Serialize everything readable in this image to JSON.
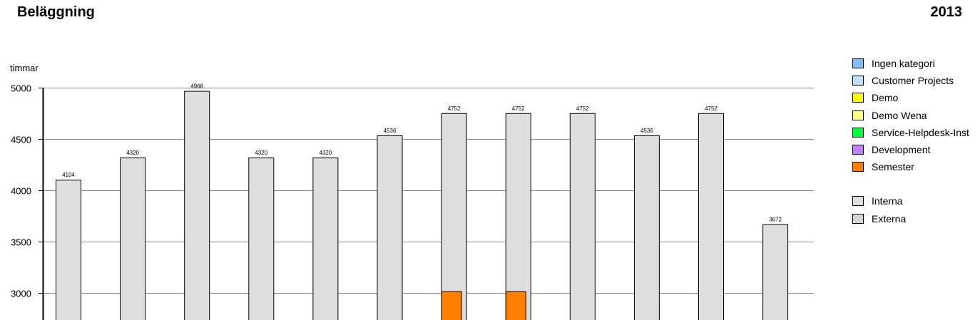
{
  "header": {
    "title": "Beläggning",
    "year": "2013"
  },
  "chart_data": {
    "type": "bar",
    "ylabel": "timmar",
    "ylim": [
      2740,
      5000
    ],
    "yticks": [
      3000,
      3500,
      4000,
      4500,
      5000
    ],
    "grid": true,
    "categories": [
      "",
      "",
      "",
      "",
      "",
      "",
      "",
      "",
      "",
      "",
      "",
      ""
    ],
    "series": [
      {
        "name": "Interna",
        "color": "#dedede",
        "values": [
          4104,
          4320,
          4968,
          4320,
          4320,
          4536,
          4752,
          4752,
          4752,
          4536,
          4752,
          3672
        ]
      },
      {
        "name": "Semester",
        "color": "#ff8000",
        "values": [
          null,
          null,
          null,
          null,
          null,
          null,
          3020,
          3020,
          null,
          null,
          null,
          null
        ]
      }
    ],
    "data_labels": [
      "4104",
      "4320",
      "4968",
      "4320",
      "4320",
      "4536",
      "4752",
      "4752",
      "4752",
      "4536",
      "4752",
      "3672"
    ]
  },
  "legend": {
    "categories": [
      {
        "label": "Ingen kategori",
        "color": "#7fbfff"
      },
      {
        "label": "Customer Projects",
        "color": "#bfdfff"
      },
      {
        "label": "Demo",
        "color": "#ffff00"
      },
      {
        "label": "Demo Wena",
        "color": "#ffff80"
      },
      {
        "label": "Service-Helpdesk-Inst",
        "color": "#00ff40"
      },
      {
        "label": "Development",
        "color": "#c080ff"
      },
      {
        "label": "Semester",
        "color": "#ff8000"
      }
    ],
    "types": [
      {
        "label": "Interna",
        "color": "#dedede",
        "pattern": "solid"
      },
      {
        "label": "Externa",
        "color": "#eeeeee",
        "pattern": "hatched"
      }
    ]
  }
}
